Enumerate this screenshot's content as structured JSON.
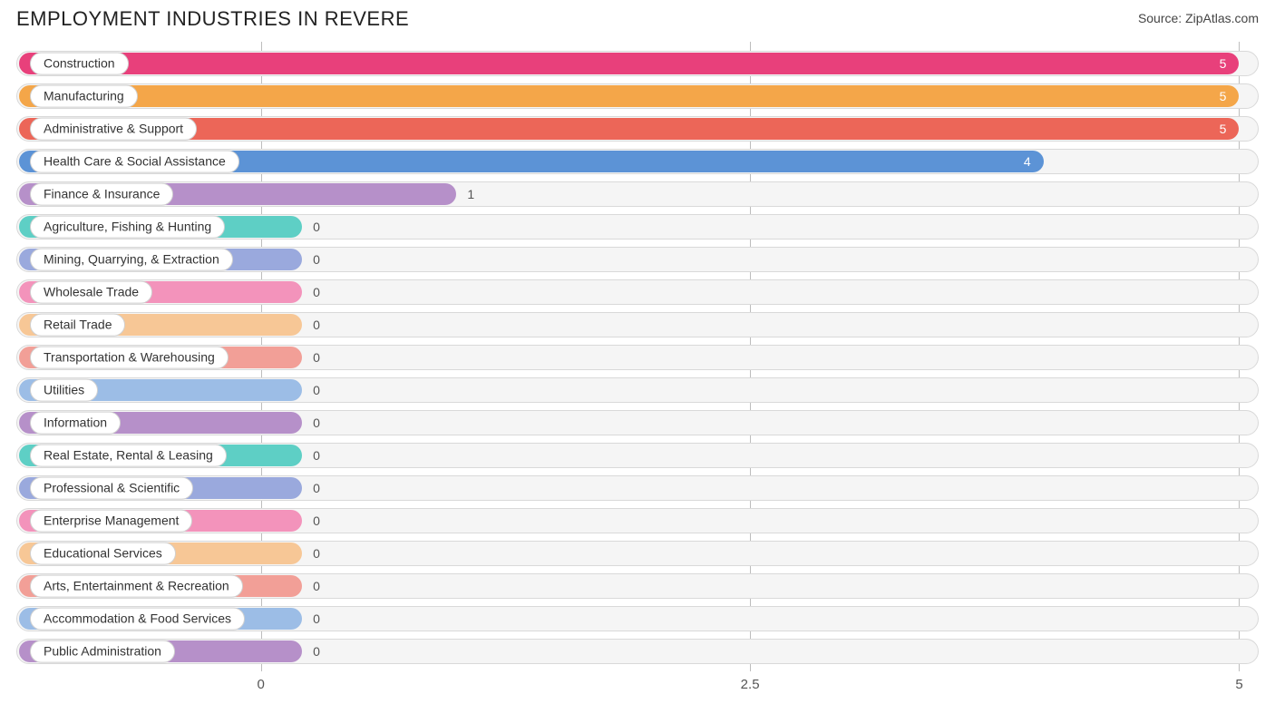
{
  "header": {
    "title": "EMPLOYMENT INDUSTRIES IN REVERE",
    "source_prefix": "Source: ",
    "source_name": "ZipAtlas.com"
  },
  "chart": {
    "type": "bar-horizontal",
    "background_color": "#ffffff",
    "track_bg": "#f5f5f5",
    "track_border": "#d9d9d9",
    "grid_color": "#bdbdbd",
    "xmin": -1.25,
    "xmax": 5.1,
    "zero_position_pct": 19.68,
    "min_fill_pct": 23.0,
    "ticks": [
      {
        "value": 0,
        "label": "0",
        "pos_pct": 19.68
      },
      {
        "value": 2.5,
        "label": "2.5",
        "pos_pct": 59.06
      },
      {
        "value": 5,
        "label": "5",
        "pos_pct": 98.43
      }
    ],
    "label_fontsize": 14,
    "tick_fontsize": 15,
    "title_fontsize": 22,
    "bars": [
      {
        "label": "Construction",
        "value": 5,
        "color": "#e8407b",
        "value_inside": true
      },
      {
        "label": "Manufacturing",
        "value": 5,
        "color": "#f4a649",
        "value_inside": true
      },
      {
        "label": "Administrative & Support",
        "value": 5,
        "color": "#ec6658",
        "value_inside": true
      },
      {
        "label": "Health Care & Social Assistance",
        "value": 4,
        "color": "#5c93d6",
        "value_inside": true
      },
      {
        "label": "Finance & Insurance",
        "value": 1,
        "color": "#b690c9",
        "value_inside": false
      },
      {
        "label": "Agriculture, Fishing & Hunting",
        "value": 0,
        "color": "#5ecfc5",
        "value_inside": false
      },
      {
        "label": "Mining, Quarrying, & Extraction",
        "value": 0,
        "color": "#9aa9dd",
        "value_inside": false
      },
      {
        "label": "Wholesale Trade",
        "value": 0,
        "color": "#f393bb",
        "value_inside": false
      },
      {
        "label": "Retail Trade",
        "value": 0,
        "color": "#f7c796",
        "value_inside": false
      },
      {
        "label": "Transportation & Warehousing",
        "value": 0,
        "color": "#f29f97",
        "value_inside": false
      },
      {
        "label": "Utilities",
        "value": 0,
        "color": "#9cbde6",
        "value_inside": false
      },
      {
        "label": "Information",
        "value": 0,
        "color": "#b690c9",
        "value_inside": false
      },
      {
        "label": "Real Estate, Rental & Leasing",
        "value": 0,
        "color": "#5ecfc5",
        "value_inside": false
      },
      {
        "label": "Professional & Scientific",
        "value": 0,
        "color": "#9aa9dd",
        "value_inside": false
      },
      {
        "label": "Enterprise Management",
        "value": 0,
        "color": "#f393bb",
        "value_inside": false
      },
      {
        "label": "Educational Services",
        "value": 0,
        "color": "#f7c796",
        "value_inside": false
      },
      {
        "label": "Arts, Entertainment & Recreation",
        "value": 0,
        "color": "#f29f97",
        "value_inside": false
      },
      {
        "label": "Accommodation & Food Services",
        "value": 0,
        "color": "#9cbde6",
        "value_inside": false
      },
      {
        "label": "Public Administration",
        "value": 0,
        "color": "#b690c9",
        "value_inside": false
      }
    ]
  }
}
